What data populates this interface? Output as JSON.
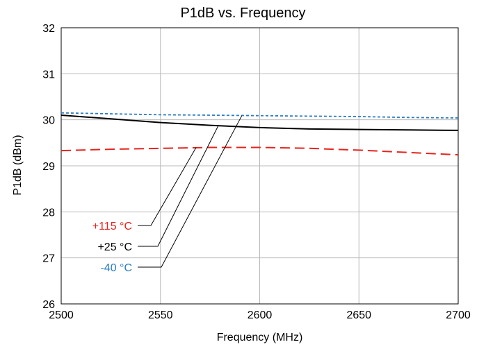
{
  "chart_data": {
    "type": "line",
    "title": "P1dB vs. Frequency",
    "xlabel": "Frequency (MHz)",
    "ylabel": "P1dB (dBm)",
    "xlim": [
      2500,
      2700
    ],
    "ylim": [
      26,
      32
    ],
    "xticks": [
      2500,
      2550,
      2600,
      2650,
      2700
    ],
    "yticks": [
      26,
      27,
      28,
      29,
      30,
      31,
      32
    ],
    "grid": true,
    "series": [
      {
        "name": "+115 °C",
        "color": "#e8221c",
        "dash": "long-dash",
        "x": [
          2500,
          2525,
          2550,
          2575,
          2600,
          2625,
          2650,
          2675,
          2700
        ],
        "y": [
          29.33,
          29.36,
          29.38,
          29.4,
          29.4,
          29.38,
          29.34,
          29.29,
          29.24
        ]
      },
      {
        "name": "+25 °C",
        "color": "#000000",
        "dash": "solid",
        "x": [
          2500,
          2525,
          2550,
          2575,
          2600,
          2625,
          2650,
          2675,
          2700
        ],
        "y": [
          30.1,
          30.02,
          29.94,
          29.88,
          29.83,
          29.8,
          29.79,
          29.78,
          29.77
        ]
      },
      {
        "name": "-40 °C",
        "color": "#2a7cc0",
        "dash": "short-dash",
        "x": [
          2500,
          2525,
          2550,
          2575,
          2600,
          2625,
          2650,
          2675,
          2700
        ],
        "y": [
          30.15,
          30.13,
          30.11,
          30.1,
          30.09,
          30.08,
          30.07,
          30.05,
          30.04
        ]
      }
    ],
    "annotations": [
      {
        "text": "+115 °C",
        "color": "#e8221c",
        "target_x": 2568,
        "target_y": 29.4
      },
      {
        "text": "+25 °C",
        "color": "#000000",
        "target_x": 2579,
        "target_y": 29.86
      },
      {
        "text": "-40 °C",
        "color": "#2a7cc0",
        "target_x": 2591,
        "target_y": 30.09
      }
    ]
  }
}
